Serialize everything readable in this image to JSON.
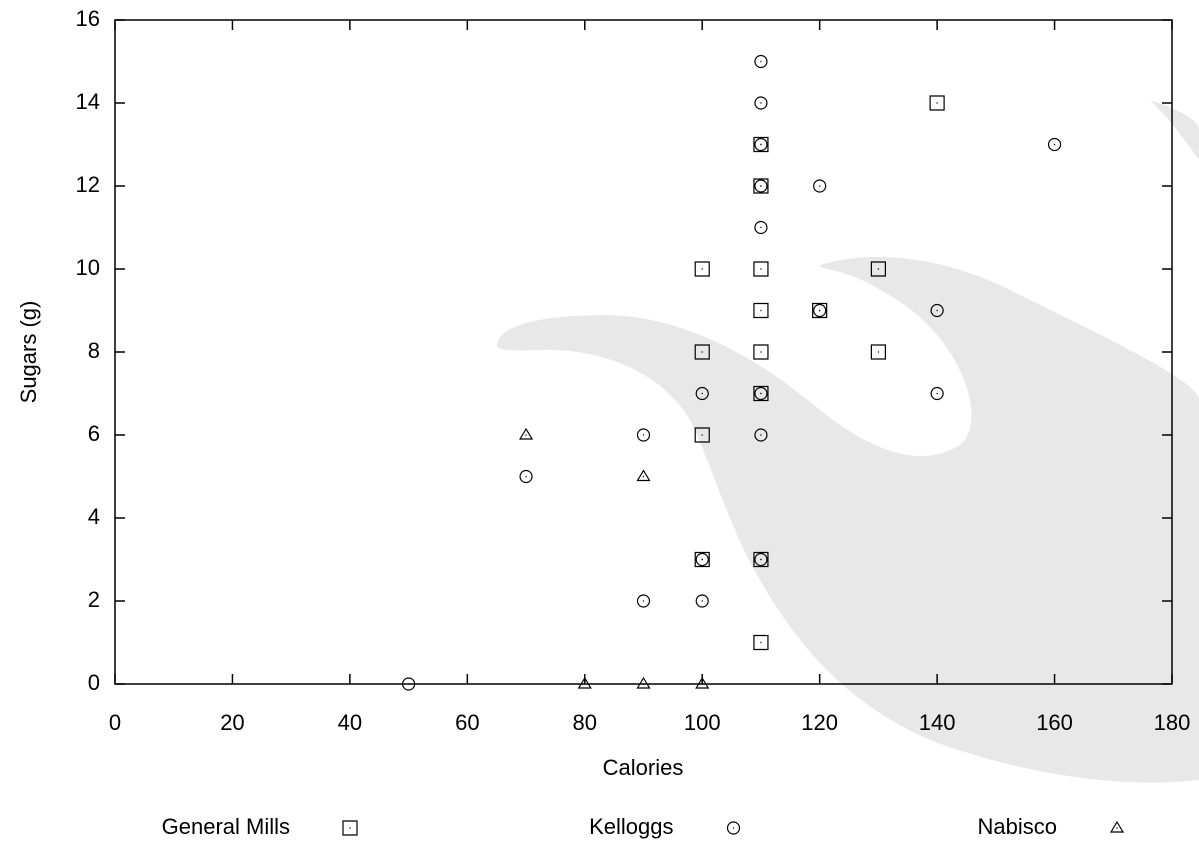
{
  "chart_data": {
    "type": "scatter",
    "x_label": "Calories",
    "y_label": "Sugars (g)",
    "xlim": [
      0,
      180
    ],
    "xticks": [
      0,
      20,
      40,
      60,
      80,
      100,
      120,
      140,
      160,
      180
    ],
    "ylim": [
      0,
      16
    ],
    "yticks": [
      0,
      2,
      4,
      6,
      8,
      10,
      12,
      14,
      16
    ],
    "legend": "bottom",
    "series": [
      {
        "name": "General Mills",
        "color": "#000000",
        "marker": "square",
        "x": [
          140,
          110,
          110,
          100,
          110,
          130,
          110,
          120,
          100,
          110,
          130,
          110,
          100,
          100,
          110,
          110
        ],
        "values": [
          14,
          13,
          12,
          10,
          10,
          10,
          9,
          9,
          8,
          8,
          8,
          7,
          6,
          3,
          3,
          1
        ]
      },
      {
        "name": "Kelloggs",
        "color": "#000000",
        "marker": "circle",
        "x": [
          110,
          110,
          110,
          160,
          110,
          120,
          110,
          120,
          140,
          100,
          110,
          140,
          90,
          110,
          70,
          100,
          110,
          90,
          100,
          50
        ],
        "values": [
          15,
          14,
          13,
          13,
          12,
          12,
          11,
          9,
          9,
          7,
          7,
          7,
          6,
          6,
          5,
          3,
          3,
          2,
          2,
          0
        ]
      },
      {
        "name": "Nabisco",
        "color": "#000000",
        "marker": "triangle",
        "x": [
          70,
          90,
          80,
          90,
          100
        ],
        "values": [
          6,
          5,
          0,
          0,
          0
        ]
      }
    ]
  }
}
